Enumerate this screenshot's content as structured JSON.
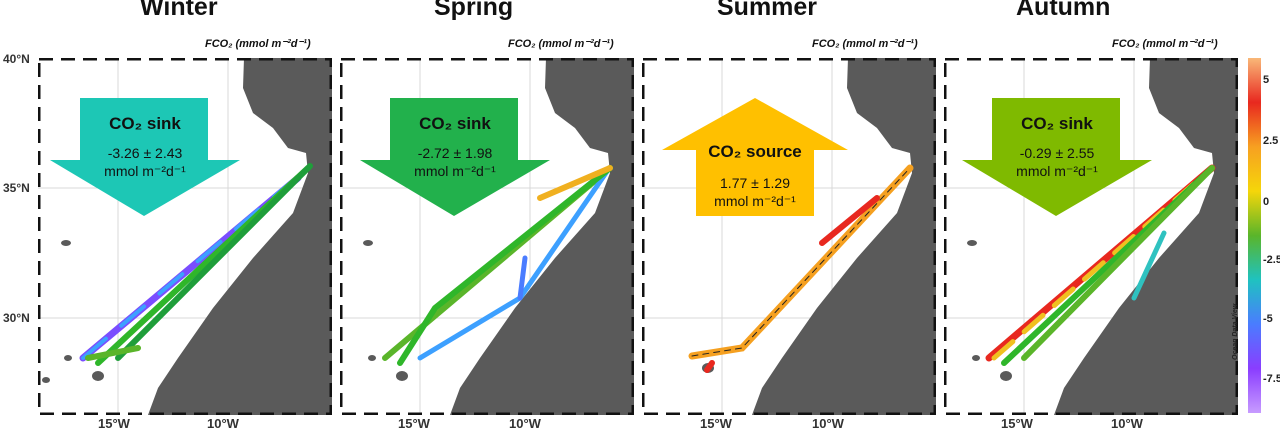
{
  "seasons": [
    {
      "key": "winter",
      "title": "Winter",
      "arrow": "down",
      "arrow_color": "#1dc7b5",
      "label": "CO₂ sink",
      "value": "-3.26 ± 2.43",
      "unit": "mmol m⁻²d⁻¹"
    },
    {
      "key": "spring",
      "title": "Spring",
      "arrow": "down",
      "arrow_color": "#22b14c",
      "label": "CO₂ sink",
      "value": "-2.72 ± 1.98",
      "unit": "mmol m⁻²d⁻¹"
    },
    {
      "key": "summer",
      "title": "Summer",
      "arrow": "up",
      "arrow_color": "#ffc000",
      "label": "CO₂ source",
      "value": "1.77 ± 1.29",
      "unit": "mmol m⁻²d⁻¹"
    },
    {
      "key": "autumn",
      "title": "Autumn",
      "arrow": "down",
      "arrow_color": "#7fba00",
      "label": "CO₂ sink",
      "value": "-0.29 ± 2.55",
      "unit": "mmol m⁻²d⁻¹"
    }
  ],
  "panel_unit_label": "FCO₂ (mmol m⁻²d⁻¹)",
  "lat_labels": [
    "40°N",
    "35°N",
    "30°N"
  ],
  "lon_labels": [
    "15°W",
    "10°W"
  ],
  "colorbar": {
    "ticks": [
      "5",
      "2.5",
      "0",
      "-2.5",
      "-5",
      "-7.5"
    ],
    "watermark": "Ocean Data View",
    "colors": [
      "#f9b878",
      "#e8281f",
      "#f7a021",
      "#f5d60a",
      "#5ab52a",
      "#1fc2c0",
      "#4a7cff",
      "#8a3dff",
      "#c79bff"
    ]
  },
  "map_colors": {
    "land": "#5a5a5a",
    "ocean": "#ffffff",
    "grid": "#d8d8d8",
    "frame": "#111111"
  }
}
